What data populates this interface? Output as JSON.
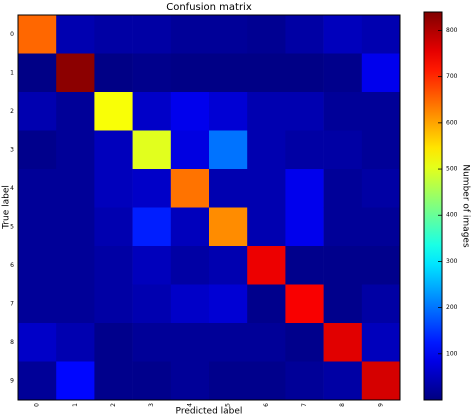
{
  "chart_data": {
    "type": "heatmap",
    "title": "Confusion matrix",
    "x_label": "Predicted label",
    "y_label": "True label",
    "colorbar_label": "Number of images",
    "colormap": "jet",
    "x_categories": [
      "0",
      "1",
      "2",
      "3",
      "4",
      "5",
      "6",
      "7",
      "8",
      "9"
    ],
    "y_categories": [
      "0",
      "1",
      "2",
      "3",
      "4",
      "5",
      "6",
      "7",
      "8",
      "9"
    ],
    "values": [
      [
        650,
        40,
        30,
        30,
        20,
        20,
        15,
        30,
        50,
        40
      ],
      [
        5,
        830,
        5,
        10,
        5,
        5,
        5,
        5,
        10,
        90
      ],
      [
        40,
        20,
        520,
        60,
        90,
        70,
        40,
        40,
        20,
        20
      ],
      [
        10,
        20,
        50,
        500,
        80,
        200,
        40,
        30,
        30,
        20
      ],
      [
        20,
        20,
        50,
        60,
        640,
        40,
        40,
        90,
        20,
        30
      ],
      [
        20,
        20,
        40,
        130,
        50,
        620,
        40,
        90,
        20,
        20
      ],
      [
        20,
        20,
        30,
        50,
        30,
        40,
        750,
        10,
        10,
        10
      ],
      [
        20,
        20,
        30,
        40,
        60,
        70,
        10,
        740,
        10,
        30
      ],
      [
        60,
        40,
        10,
        20,
        20,
        20,
        20,
        10,
        760,
        50
      ],
      [
        20,
        110,
        10,
        10,
        20,
        10,
        10,
        20,
        30,
        770
      ]
    ],
    "zlim": [
      0,
      840
    ],
    "zticks": [
      100,
      200,
      300,
      400,
      500,
      600,
      700,
      800
    ]
  }
}
